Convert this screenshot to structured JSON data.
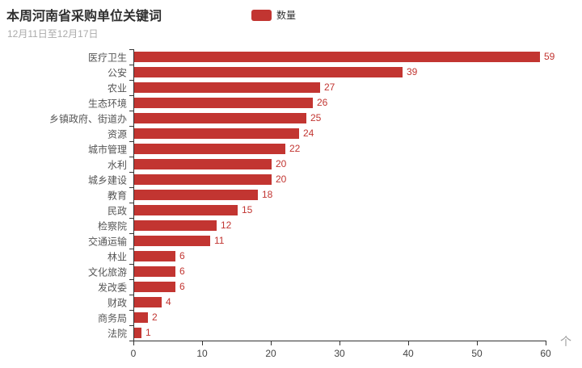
{
  "chart_data": {
    "type": "bar",
    "orientation": "horizontal",
    "title": "本周河南省采购单位关键词",
    "subtitle": "12月11日至12月17日",
    "series_name": "数量",
    "categories": [
      "医疗卫生",
      "公安",
      "农业",
      "生态环境",
      "乡镇政府、街道办",
      "资源",
      "城市管理",
      "水利",
      "城乡建设",
      "教育",
      "民政",
      "检察院",
      "交通运输",
      "林业",
      "文化旅游",
      "发改委",
      "财政",
      "商务局",
      "法院"
    ],
    "values": [
      59,
      39,
      27,
      26,
      25,
      24,
      22,
      20,
      20,
      18,
      15,
      12,
      11,
      6,
      6,
      6,
      4,
      2,
      1
    ],
    "value_labels_shown": true,
    "xlim": [
      0,
      60
    ],
    "x_ticks": [
      0,
      10,
      20,
      30,
      40,
      50,
      60
    ],
    "axis_name": "个",
    "bar_color": "#c23531",
    "value_label_color": "#c23531",
    "grid": false,
    "legend_position": "top-center"
  }
}
